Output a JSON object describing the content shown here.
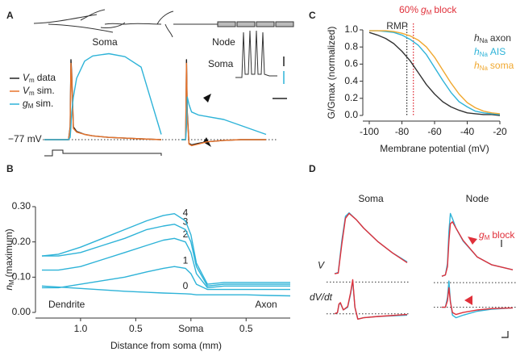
{
  "chart_data": [
    {
      "type": "line",
      "panel": "A",
      "title": "Soma",
      "x": [
        0,
        30,
        32,
        33,
        34,
        36,
        40,
        50,
        60,
        80,
        100,
        120,
        145
      ],
      "xlim": [
        0,
        150
      ],
      "ylim": [
        -90,
        45
      ],
      "baseline": {
        "value": -77,
        "label": "−77 mV"
      },
      "legend": "left",
      "legend_swatches": true,
      "series": [
        {
          "name": {
            "symbol": "V",
            "subscript": "m",
            "after": "data"
          },
          "color": "#222222",
          "values": [
            -77,
            -77,
            -60,
            30,
            10,
            -60,
            -66,
            -70,
            -72,
            -74,
            -75,
            -76,
            -77
          ]
        },
        {
          "name": {
            "symbol": "V",
            "subscript": "m",
            "after": "sim."
          },
          "color": "#e8742c",
          "values": [
            -77,
            -77,
            -62,
            25,
            5,
            -62,
            -67,
            -70,
            -72,
            -74,
            -75,
            -76,
            -77
          ]
        },
        {
          "name": {
            "symbol": "g",
            "subscript": "M",
            "after": "sim."
          },
          "color": "#2eb3d8",
          "values": [
            -77,
            -77,
            -74,
            -60,
            -40,
            -20,
            5,
            28,
            35,
            38,
            34,
            20,
            -70
          ]
        }
      ]
    },
    {
      "type": "line",
      "title": "Node",
      "x": [
        0,
        5,
        6,
        7,
        9,
        12,
        20,
        30,
        50,
        70,
        100
      ],
      "xlim": [
        0,
        100
      ],
      "ylim": [
        -90,
        45
      ],
      "series": [
        {
          "color": "#222222",
          "values": [
            -77,
            -77,
            30,
            -40,
            -82,
            -84,
            -82,
            -80,
            -78,
            -77,
            -77
          ]
        },
        {
          "color": "#e8742c",
          "values": [
            -77,
            -77,
            25,
            -45,
            -83,
            -85,
            -83,
            -80,
            -78,
            -77,
            -77
          ]
        },
        {
          "color": "#2eb3d8",
          "values": [
            -77,
            -77,
            -60,
            -20,
            -30,
            -40,
            -44,
            -46,
            -50,
            -58,
            -70
          ]
        }
      ]
    },
    {
      "type": "line",
      "panel": "B",
      "x": [
        -1.35,
        -1.2,
        -1.0,
        -0.8,
        -0.6,
        -0.4,
        -0.25,
        -0.15,
        -0.05,
        0,
        0.05,
        0.15,
        0.3,
        0.5,
        0.7,
        0.9
      ],
      "xlim": [
        -1.35,
        0.9
      ],
      "ylim": [
        0,
        0.3
      ],
      "xticks": [
        {
          "value": -1.0,
          "label": "1.0"
        },
        {
          "value": -0.5,
          "label": "0.5"
        },
        {
          "value": 0,
          "label": "Soma"
        },
        0.5
      ],
      "yticks": [
        {
          "value": 0,
          "label": "0.00"
        },
        {
          "value": 0.1,
          "label": "0.10"
        },
        {
          "value": 0.2,
          "label": "0.20"
        },
        {
          "value": 0.3,
          "label": "0.30"
        }
      ],
      "xlabel": "Distance from soma (mm)",
      "ylabel": {
        "symbol": "n",
        "subscript": "M",
        "after": "(maximum)"
      },
      "region_labels": [
        "Dendrite",
        "Axon"
      ],
      "inset_label": "Soma",
      "curve_labels": true,
      "series": [
        {
          "name": "0",
          "color": "#2eb3d8",
          "values": [
            0.075,
            0.072,
            0.068,
            0.064,
            0.06,
            0.057,
            0.055,
            0.054,
            0.053,
            0.052,
            0.05,
            0.05,
            0.05,
            0.05,
            0.048,
            0.047
          ]
        },
        {
          "name": "1",
          "color": "#2eb3d8",
          "values": [
            0.07,
            0.07,
            0.08,
            0.09,
            0.1,
            0.115,
            0.125,
            0.13,
            0.125,
            0.11,
            0.08,
            0.065,
            0.065,
            0.065,
            0.065,
            0.065
          ]
        },
        {
          "name": "2",
          "color": "#2eb3d8",
          "values": [
            0.12,
            0.12,
            0.13,
            0.15,
            0.17,
            0.19,
            0.205,
            0.21,
            0.2,
            0.17,
            0.11,
            0.07,
            0.075,
            0.075,
            0.075,
            0.075
          ]
        },
        {
          "name": "3",
          "color": "#2eb3d8",
          "values": [
            0.16,
            0.16,
            0.17,
            0.19,
            0.21,
            0.235,
            0.245,
            0.25,
            0.235,
            0.2,
            0.13,
            0.075,
            0.08,
            0.08,
            0.08,
            0.08
          ]
        },
        {
          "name": "4",
          "color": "#2eb3d8",
          "values": [
            0.16,
            0.165,
            0.185,
            0.21,
            0.235,
            0.26,
            0.275,
            0.28,
            0.26,
            0.22,
            0.14,
            0.08,
            0.085,
            0.085,
            0.085,
            0.085
          ]
        }
      ]
    },
    {
      "type": "line",
      "panel": "C",
      "x": [
        -100,
        -95,
        -90,
        -85,
        -80,
        -75,
        -70,
        -65,
        -60,
        -55,
        -50,
        -45,
        -40,
        -35,
        -30,
        -25,
        -20
      ],
      "xlim": [
        -100,
        -20
      ],
      "ylim": [
        0,
        1
      ],
      "xticks": [
        -100,
        -80,
        -60,
        -40,
        -20
      ],
      "yticks": [
        {
          "value": 0,
          "label": "0.0"
        },
        0.2,
        0.4,
        0.6,
        0.8,
        {
          "value": 1,
          "label": "1.0"
        }
      ],
      "xlabel": "Membrane potential (mV)",
      "ylabel": "G/Gmax (normalized)",
      "legend": "upper right",
      "legend_swatches": false,
      "markers": [
        {
          "x": -77,
          "color": "#333333",
          "label": "RMP"
        },
        {
          "x": -73,
          "color": "#e0303a",
          "label": {
            "before": "60%",
            "symbol": "g",
            "subscript": "M",
            "after": "block"
          }
        }
      ],
      "series": [
        {
          "name": {
            "symbol": "h",
            "subscript": "Na",
            "after": "axon"
          },
          "color": "#333333",
          "values": [
            0.97,
            0.94,
            0.9,
            0.84,
            0.75,
            0.64,
            0.5,
            0.36,
            0.25,
            0.16,
            0.1,
            0.06,
            0.03,
            0.02,
            0.01,
            0.01,
            0.0
          ]
        },
        {
          "name": {
            "symbol": "h",
            "subscript": "Na",
            "after": "AIS"
          },
          "color": "#2eb3d8",
          "values": [
            0.99,
            0.99,
            0.98,
            0.97,
            0.94,
            0.89,
            0.82,
            0.71,
            0.56,
            0.41,
            0.27,
            0.16,
            0.1,
            0.05,
            0.03,
            0.02,
            0.01
          ]
        },
        {
          "name": {
            "symbol": "h",
            "subscript": "Na",
            "after": "soma"
          },
          "color": "#f0a830",
          "values": [
            0.99,
            0.99,
            0.99,
            0.98,
            0.96,
            0.93,
            0.88,
            0.8,
            0.68,
            0.53,
            0.38,
            0.25,
            0.15,
            0.09,
            0.05,
            0.03,
            0.02
          ]
        }
      ]
    },
    {
      "type": "line",
      "panel": "D",
      "title": "Soma",
      "xlim": [
        0,
        100
      ],
      "rows": [
        {
          "label": "V",
          "x": [
            0,
            5,
            10,
            15,
            20,
            30,
            40,
            60,
            80,
            100
          ],
          "ylim": [
            -10,
            110
          ],
          "series": [
            {
              "color": "#2eb3d8",
              "values": [
                12,
                14,
                60,
                95,
                100,
                90,
                78,
                58,
                42,
                29
              ]
            },
            {
              "color": "#e0303a",
              "values": [
                12,
                13,
                55,
                92,
                99,
                90,
                78,
                58,
                42,
                28
              ]
            }
          ]
        },
        {
          "label": "dV/dt",
          "x": [
            0,
            4,
            6,
            8,
            12,
            18,
            22,
            25,
            28,
            32,
            40,
            60,
            100
          ],
          "ylim": [
            -20,
            60
          ],
          "series": [
            {
              "color": "#2eb3d8",
              "values": [
                0,
                2,
                14,
                16,
                6,
                10,
                30,
                50,
                10,
                -8,
                -6,
                -4,
                -2
              ]
            },
            {
              "color": "#e0303a",
              "values": [
                0,
                2,
                15,
                17,
                6,
                11,
                32,
                52,
                10,
                -8,
                -6,
                -4,
                -1
              ]
            }
          ]
        }
      ]
    },
    {
      "type": "line",
      "title": "Node",
      "xlim": [
        0,
        100
      ],
      "annotation": {
        "symbol": "g",
        "subscript": "M",
        "after": "block"
      },
      "rows": [
        {
          "x": [
            0,
            5,
            8,
            10,
            12,
            15,
            20,
            30,
            50,
            70,
            100
          ],
          "ylim": [
            -10,
            120
          ],
          "series": [
            {
              "color": "#2eb3d8",
              "values": [
                10,
                12,
                30,
                80,
                108,
                100,
                85,
                65,
                40,
                28,
                20
              ]
            },
            {
              "color": "#e0303a",
              "values": [
                10,
                12,
                25,
                65,
                92,
                95,
                85,
                66,
                40,
                28,
                20
              ]
            }
          ]
        },
        {
          "x": [
            0,
            5,
            8,
            10,
            12,
            15,
            20,
            30,
            50,
            70,
            100
          ],
          "ylim": [
            -30,
            50
          ],
          "series": [
            {
              "color": "#2eb3d8",
              "values": [
                0,
                0,
                15,
                40,
                10,
                -12,
                -16,
                -12,
                -6,
                -3,
                -1
              ]
            },
            {
              "color": "#e0303a",
              "values": [
                0,
                0,
                10,
                30,
                8,
                -8,
                -11,
                -8,
                -4,
                -2,
                -1
              ]
            }
          ]
        }
      ]
    }
  ]
}
